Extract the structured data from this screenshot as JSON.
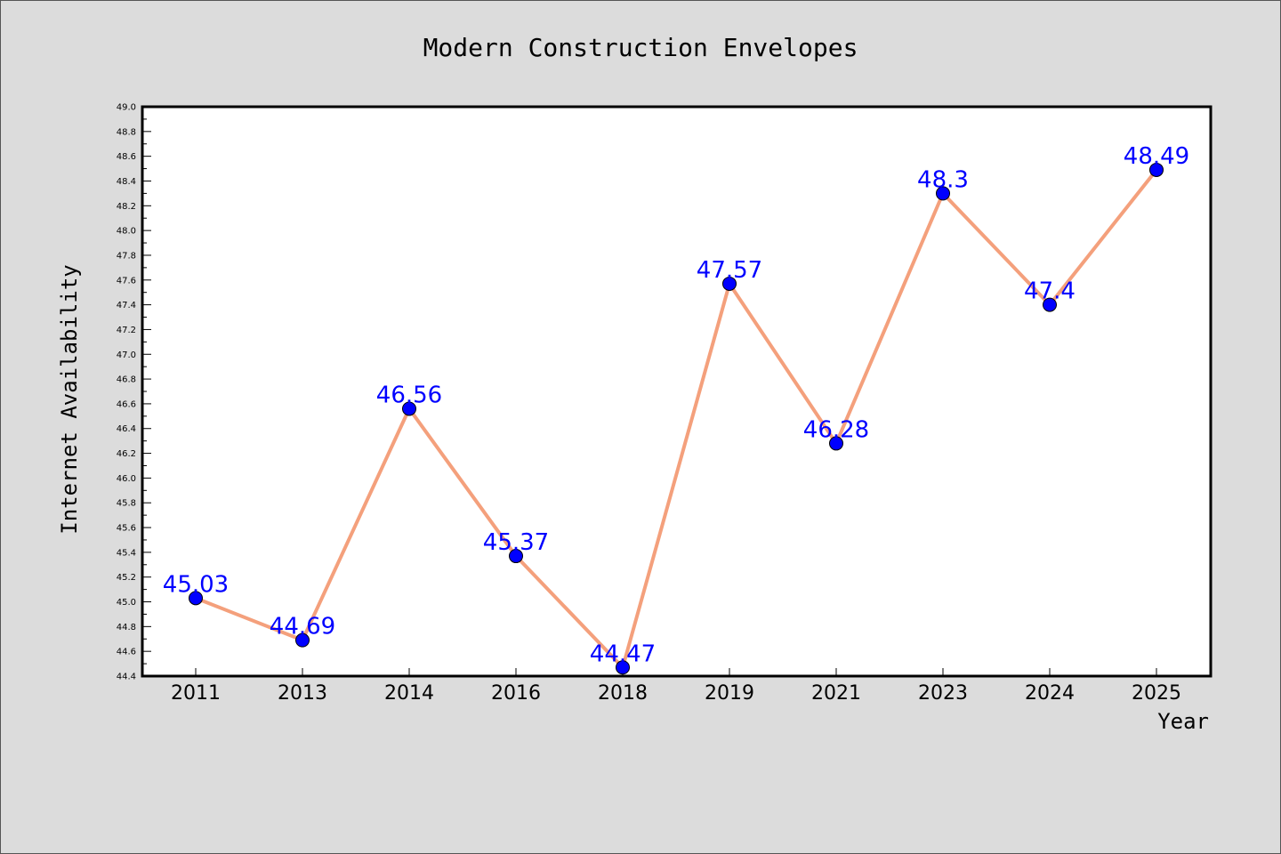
{
  "chart_data": {
    "type": "line",
    "title": "Modern Construction Envelopes",
    "xlabel": "Year",
    "ylabel": "Internet Availability",
    "categories": [
      "2011",
      "2013",
      "2014",
      "2016",
      "2018",
      "2019",
      "2021",
      "2023",
      "2024",
      "2025"
    ],
    "series": [
      {
        "values": [
          45.03,
          44.69,
          46.56,
          45.37,
          44.47,
          47.57,
          46.28,
          48.3,
          47.4,
          48.49
        ]
      }
    ],
    "data_labels": [
      "45.03",
      "44.69",
      "46.56",
      "45.37",
      "44.47",
      "47.57",
      "46.28",
      "48.3",
      "47.4",
      "48.49"
    ],
    "ylim": [
      44.4,
      49.0
    ],
    "y_major_step": 0.2,
    "grid": false,
    "legend": "none",
    "colors": {
      "line": "#f4a07c",
      "marker_fill": "#0000ff",
      "marker_edge": "#000000",
      "data_label": "#0000ff",
      "background": "#dcdcdc",
      "plot_background": "#ffffff"
    }
  }
}
